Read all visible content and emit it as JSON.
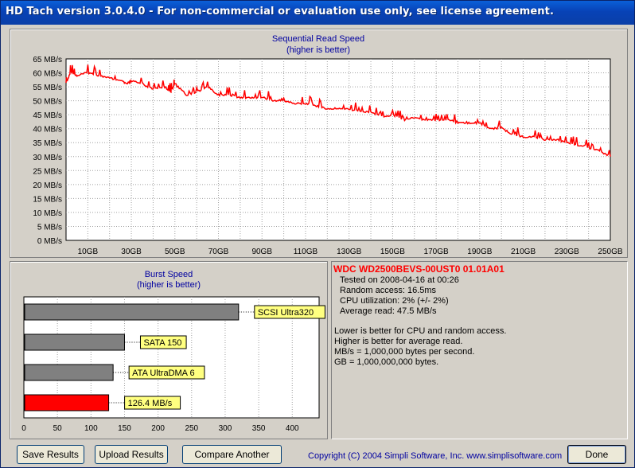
{
  "window": {
    "title": "HD Tach version 3.0.4.0  - For non-commercial or evaluation use only, see license agreement."
  },
  "read_chart": {
    "title": "Sequential Read Speed",
    "subtitle": "(higher is better)"
  },
  "burst_chart": {
    "title": "Burst Speed",
    "subtitle": "(higher is better)"
  },
  "drive_info": {
    "model": "WDC WD2500BEVS-00UST0 01.01A01",
    "tested_on": "Tested on 2008-04-16 at 00:26",
    "random_access": "Random access: 16.5ms",
    "cpu_utilization": "CPU utilization: 2% (+/- 2%)",
    "average_read": "Average read: 47.5 MB/s",
    "note_1": "Lower is better for CPU and random access.",
    "note_2": "Higher is better for average read.",
    "note_3": "MB/s = 1,000,000 bytes per second.",
    "note_4": "GB = 1,000,000,000 bytes."
  },
  "buttons": {
    "save": "Save Results",
    "upload": "Upload Results",
    "compare": "Compare Another Drive",
    "done": "Done"
  },
  "copyright": "Copyright (C) 2004 Simpli Software, Inc. www.simplisoftware.com",
  "colors": {
    "read_line": "#ff0000",
    "burst_current": "#ff0000",
    "burst_reference": "#808080",
    "label_fill": "#ffff80",
    "accent_text": "#0000a0",
    "drive_model": "#ff0000"
  },
  "chart_data": [
    {
      "type": "line",
      "title": "Sequential Read Speed",
      "subtitle": "(higher is better)",
      "xlabel": "",
      "ylabel": "",
      "x_ticks": [
        "10GB",
        "30GB",
        "50GB",
        "70GB",
        "90GB",
        "110GB",
        "130GB",
        "150GB",
        "170GB",
        "190GB",
        "210GB",
        "230GB",
        "250GB"
      ],
      "y_ticks": [
        "0 MB/s",
        "5 MB/s",
        "10 MB/s",
        "15 MB/s",
        "20 MB/s",
        "25 MB/s",
        "30 MB/s",
        "35 MB/s",
        "40 MB/s",
        "45 MB/s",
        "50 MB/s",
        "55 MB/s",
        "60 MB/s",
        "65 MB/s"
      ],
      "xlim": [
        0,
        250
      ],
      "ylim": [
        0,
        65
      ],
      "grid": true,
      "series": [
        {
          "x": [
            0,
            2,
            5,
            10,
            15,
            20,
            25,
            28,
            30,
            35,
            40,
            45,
            48,
            50,
            55,
            60,
            65,
            70,
            75,
            80,
            85,
            90,
            95,
            100,
            105,
            110,
            115,
            120,
            125,
            130,
            135,
            140,
            145,
            150,
            155,
            160,
            165,
            170,
            175,
            180,
            185,
            190,
            195,
            200,
            205,
            210,
            215,
            220,
            225,
            230,
            235,
            240,
            245,
            250
          ],
          "y": [
            56,
            60,
            59,
            60,
            59,
            58,
            57,
            56,
            57,
            56,
            54,
            55,
            53,
            56,
            52,
            53,
            55,
            52,
            52,
            51,
            51,
            51,
            50,
            50,
            49,
            49,
            48,
            47,
            47,
            47,
            46,
            46,
            44,
            45,
            43,
            44,
            43,
            43,
            43,
            42,
            42,
            42,
            40,
            40,
            38,
            37,
            37,
            36,
            36,
            35,
            34,
            33,
            32,
            30
          ]
        }
      ]
    },
    {
      "type": "bar",
      "title": "Burst Speed",
      "subtitle": "(higher is better)",
      "categories": [
        "SCSI Ultra320",
        "SATA 150",
        "ATA UltraDMA 6",
        "126.4 MB/s"
      ],
      "values": [
        320,
        150,
        133,
        126.4
      ],
      "x_ticks": [
        "0",
        "50",
        "100",
        "150",
        "200",
        "250",
        "300",
        "350",
        "400"
      ],
      "xlim": [
        0,
        440
      ],
      "grid": true
    }
  ]
}
